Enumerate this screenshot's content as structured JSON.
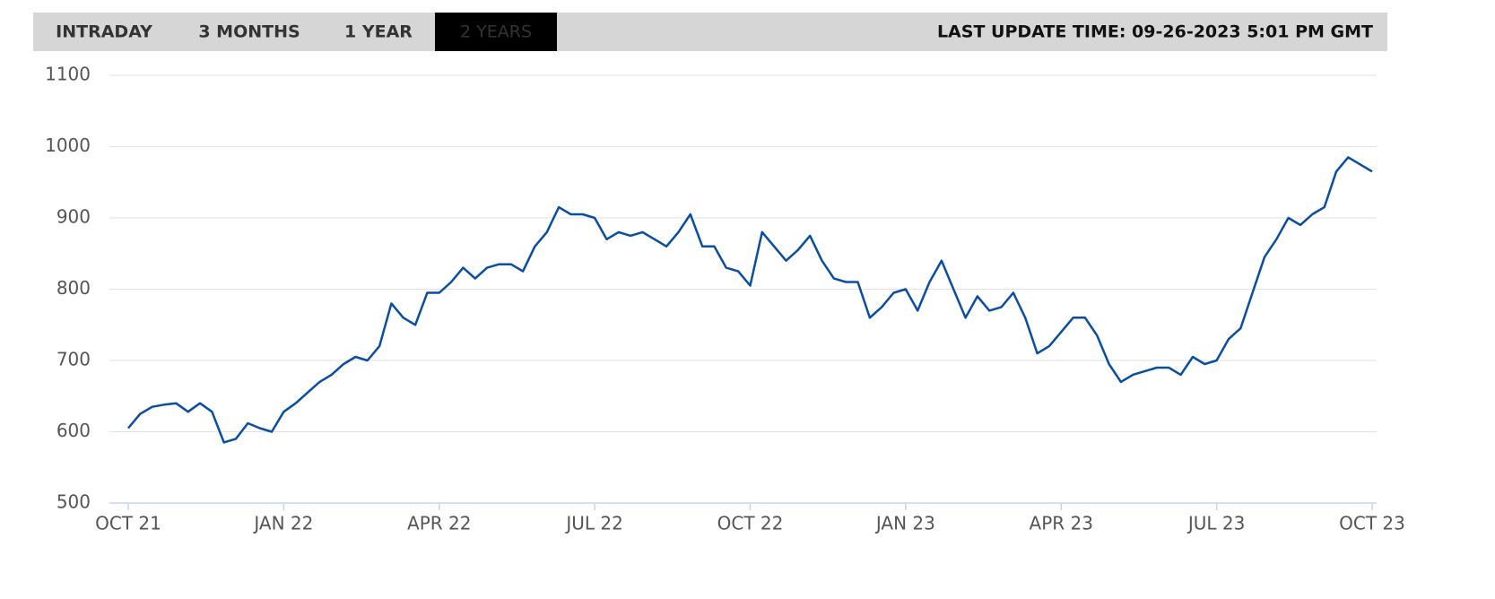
{
  "tabs": [
    "INTRADAY",
    "3 MONTHS",
    "1 YEAR",
    "2 YEARS"
  ],
  "active_tab": 3,
  "last_update": "LAST UPDATE TIME: 09-26-2023 5:01 PM GMT",
  "chart_data": {
    "type": "line",
    "categories": [
      "OCT 21",
      null,
      null,
      null,
      null,
      null,
      null,
      null,
      null,
      null,
      null,
      null,
      null,
      "JAN 22",
      null,
      null,
      null,
      null,
      null,
      null,
      null,
      null,
      null,
      null,
      null,
      null,
      "APR 22",
      null,
      null,
      null,
      null,
      null,
      null,
      null,
      null,
      null,
      null,
      null,
      null,
      "JUL 22",
      null,
      null,
      null,
      null,
      null,
      null,
      null,
      null,
      null,
      null,
      null,
      null,
      "OCT 22",
      null,
      null,
      null,
      null,
      null,
      null,
      null,
      null,
      null,
      null,
      null,
      null,
      "JAN 23",
      null,
      null,
      null,
      null,
      null,
      null,
      null,
      null,
      null,
      null,
      null,
      null,
      "APR 23",
      null,
      null,
      null,
      null,
      null,
      null,
      null,
      null,
      null,
      null,
      null,
      null,
      "JUL 23",
      null,
      null,
      null,
      null,
      null,
      null,
      null,
      null,
      null,
      null,
      null,
      null,
      "OCT 23"
    ],
    "values": [
      605,
      625,
      635,
      638,
      640,
      628,
      640,
      628,
      585,
      590,
      612,
      605,
      600,
      628,
      640,
      655,
      670,
      680,
      695,
      705,
      700,
      720,
      780,
      760,
      750,
      795,
      795,
      810,
      830,
      815,
      830,
      835,
      835,
      825,
      860,
      880,
      915,
      905,
      905,
      900,
      870,
      880,
      875,
      880,
      870,
      860,
      880,
      905,
      860,
      860,
      830,
      825,
      805,
      880,
      860,
      840,
      855,
      875,
      840,
      815,
      810,
      810,
      760,
      775,
      795,
      800,
      770,
      810,
      840,
      800,
      760,
      790,
      770,
      775,
      795,
      760,
      710,
      720,
      740,
      760,
      760,
      735,
      695,
      670,
      680,
      685,
      690,
      690,
      680,
      705,
      695,
      700,
      730,
      745,
      795,
      845,
      870,
      900,
      890,
      905,
      915,
      965,
      985,
      975,
      965
    ],
    "color": "#0a4ea2",
    "ylim": [
      500,
      1100
    ],
    "yticks": [
      500,
      600,
      700,
      800,
      900,
      1000,
      1100
    ],
    "grid": true
  }
}
